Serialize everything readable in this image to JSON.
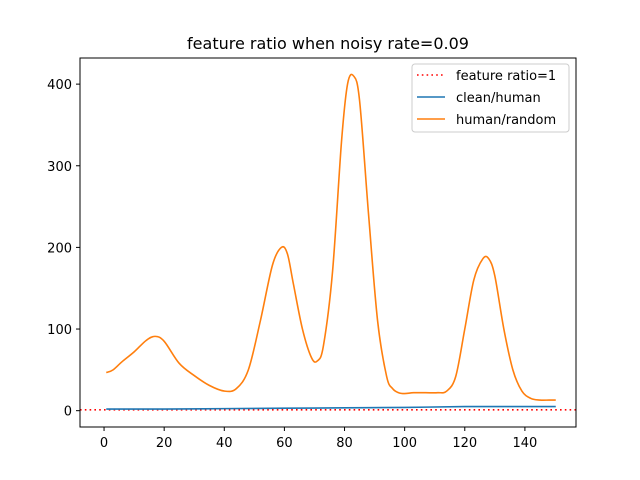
{
  "chart_data": {
    "type": "line",
    "title": "feature ratio when noisy rate=0.09",
    "xlabel": "",
    "ylabel": "",
    "xlim": [
      -8,
      157
    ],
    "ylim": [
      -20,
      432
    ],
    "x_ticks": [
      0,
      20,
      40,
      60,
      80,
      100,
      120,
      140
    ],
    "y_ticks": [
      0,
      100,
      200,
      300,
      400
    ],
    "grid": false,
    "legend_position": "top-right",
    "reference_line": {
      "name": "feature ratio=1",
      "y": 1,
      "style": "dotted",
      "color": "#ff0000"
    },
    "series": [
      {
        "name": "clean/human",
        "color": "#1f77b4",
        "x": [
          1,
          20,
          40,
          60,
          80,
          100,
          120,
          130,
          140,
          150
        ],
        "y": [
          2,
          2,
          2.5,
          3,
          3.5,
          4,
          5,
          5,
          5,
          5
        ]
      },
      {
        "name": "human/random",
        "color": "#ff7f0e",
        "x": [
          1,
          3,
          6,
          10,
          14,
          17,
          20,
          25,
          30,
          35,
          40,
          44,
          48,
          52,
          56,
          59,
          61,
          63,
          66,
          69,
          71,
          73,
          76,
          79,
          81,
          83,
          85,
          88,
          91,
          94,
          96,
          98,
          100,
          103,
          107,
          111,
          114,
          117,
          120,
          123,
          126,
          128,
          130,
          133,
          136,
          139,
          142,
          145,
          148,
          150
        ],
        "y": [
          47,
          50,
          60,
          72,
          86,
          91,
          85,
          58,
          43,
          31,
          24,
          27,
          50,
          110,
          178,
          200,
          192,
          155,
          100,
          65,
          61,
          80,
          170,
          330,
          400,
          410,
          380,
          240,
          110,
          42,
          27,
          22,
          21,
          22,
          22,
          22,
          24,
          42,
          100,
          160,
          186,
          186,
          165,
          100,
          50,
          24,
          15,
          13,
          13,
          13
        ]
      }
    ]
  }
}
